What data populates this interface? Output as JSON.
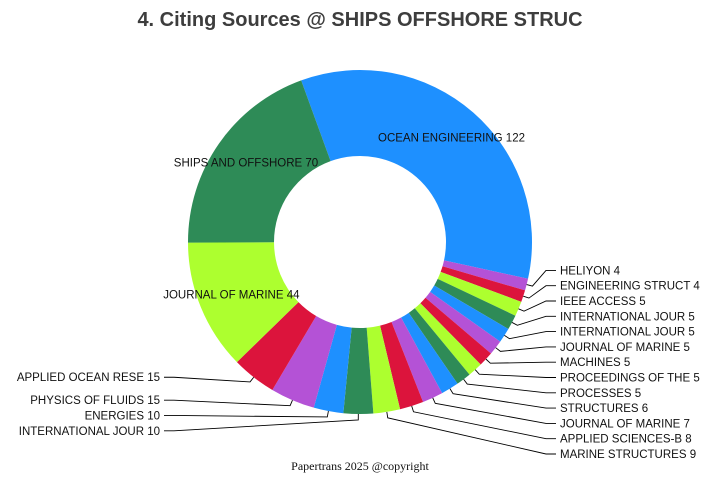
{
  "chart_data": {
    "type": "pie",
    "donut": true,
    "title": "4. Citing Sources @ SHIPS OFFSHORE STRUC",
    "footer": "Papertrans 2025 @copyright",
    "slices": [
      {
        "label": "OCEAN ENGINEERING",
        "value": 122,
        "display": "OCEAN ENGINEERING 122",
        "color": "#1e90ff"
      },
      {
        "label": "HELIYON",
        "value": 4,
        "display": "HELIYON 4",
        "color": "#b452d6"
      },
      {
        "label": "ENGINEERING STRUCT",
        "value": 4,
        "display": "ENGINEERING STRUCT 4",
        "color": "#dc143c"
      },
      {
        "label": "IEEE ACCESS",
        "value": 5,
        "display": "IEEE ACCESS 5",
        "color": "#adff2f"
      },
      {
        "label": "INTERNATIONAL JOUR",
        "value": 5,
        "display": "INTERNATIONAL JOUR 5",
        "color": "#2e8b57"
      },
      {
        "label": "INTERNATIONAL JOUR",
        "value": 5,
        "display": "INTERNATIONAL JOUR 5",
        "color": "#1e90ff"
      },
      {
        "label": "JOURNAL OF MARINE",
        "value": 5,
        "display": "JOURNAL OF MARINE  5",
        "color": "#b452d6"
      },
      {
        "label": "MACHINES",
        "value": 5,
        "display": "MACHINES 5",
        "color": "#dc143c"
      },
      {
        "label": "PROCEEDINGS OF THE",
        "value": 5,
        "display": "PROCEEDINGS OF THE 5",
        "color": "#adff2f"
      },
      {
        "label": "PROCESSES",
        "value": 5,
        "display": "PROCESSES 5",
        "color": "#2e8b57"
      },
      {
        "label": "STRUCTURES",
        "value": 6,
        "display": "STRUCTURES 6",
        "color": "#1e90ff"
      },
      {
        "label": "JOURNAL OF MARINE",
        "value": 7,
        "display": "JOURNAL OF MARINE  7",
        "color": "#b452d6"
      },
      {
        "label": "APPLIED SCIENCES-B",
        "value": 8,
        "display": "APPLIED SCIENCES-B 8",
        "color": "#dc143c"
      },
      {
        "label": "MARINE STRUCTURES",
        "value": 9,
        "display": "MARINE STRUCTURES 9",
        "color": "#adff2f"
      },
      {
        "label": "INTERNATIONAL JOUR",
        "value": 10,
        "display": "INTERNATIONAL JOUR 10",
        "color": "#2e8b57"
      },
      {
        "label": "ENERGIES",
        "value": 10,
        "display": "ENERGIES 10",
        "color": "#1e90ff"
      },
      {
        "label": "PHYSICS OF FLUIDS",
        "value": 15,
        "display": "PHYSICS OF FLUIDS 15",
        "color": "#b452d6"
      },
      {
        "label": "APPLIED OCEAN RESE",
        "value": 15,
        "display": "APPLIED OCEAN RESE 15",
        "color": "#dc143c"
      },
      {
        "label": "JOURNAL OF MARINE",
        "value": 44,
        "display": "JOURNAL OF MARINE  44",
        "color": "#adff2f"
      },
      {
        "label": "SHIPS AND OFFSHORE",
        "value": 70,
        "display": "SHIPS AND OFFSHORE 70",
        "color": "#2e8b57"
      }
    ]
  }
}
